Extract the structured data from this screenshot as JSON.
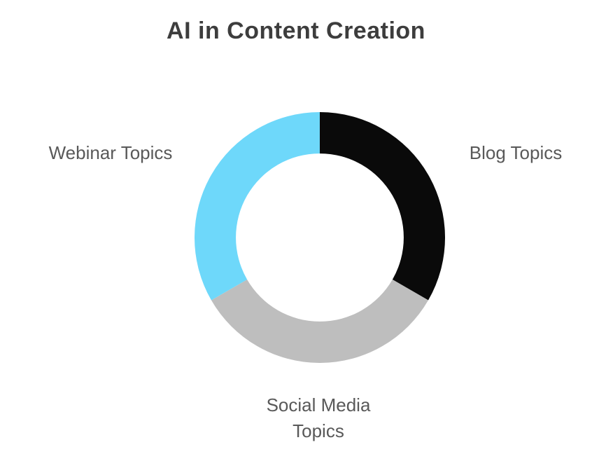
{
  "page": {
    "background": "#ffffff"
  },
  "chart_data": {
    "type": "pie",
    "variant": "donut",
    "title": "AI in Content Creation",
    "title_color": "#3d3d3d",
    "categories": [
      "Blog Topics",
      "Social Media Topics",
      "Webinar Topics"
    ],
    "values": [
      33.33,
      33.33,
      33.33
    ],
    "colors": [
      "#0a0a0a",
      "#bebebe",
      "#6ed8fa"
    ],
    "start_angle_deg": 0,
    "direction": "clockwise",
    "inner_radius_ratio": 0.67,
    "label_color": "#595959",
    "label_positions": [
      "right",
      "bottom",
      "left"
    ],
    "legend_position": "labels-around-chart",
    "grid": false
  }
}
